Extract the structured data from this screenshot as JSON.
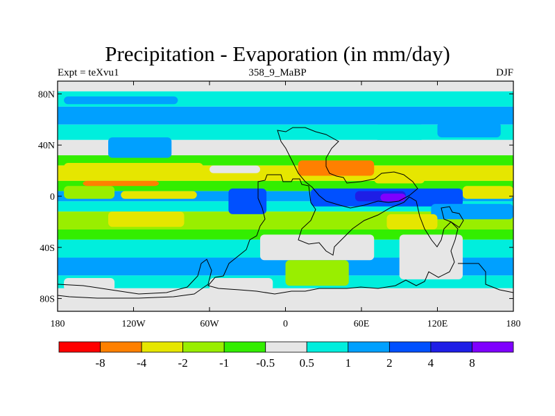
{
  "title": "Precipitation - Evaporation (in mm/day)",
  "subtitle_left": "Expt = teXvu1",
  "subtitle_center": "358_9_MaBP",
  "subtitle_right": "DJF",
  "axes": {
    "x_range": [
      -180,
      180
    ],
    "y_range": [
      -90,
      90
    ],
    "x_ticks": [
      {
        "value": -180,
        "label": "180"
      },
      {
        "value": -120,
        "label": "120W"
      },
      {
        "value": -60,
        "label": "60W"
      },
      {
        "value": 0,
        "label": "0"
      },
      {
        "value": 60,
        "label": "60E"
      },
      {
        "value": 120,
        "label": "120E"
      },
      {
        "value": 180,
        "label": "180"
      }
    ],
    "y_ticks": [
      {
        "value": 80,
        "label": "80N"
      },
      {
        "value": 40,
        "label": "40N"
      },
      {
        "value": 0,
        "label": "0"
      },
      {
        "value": -40,
        "label": "40S"
      },
      {
        "value": -80,
        "label": "80S"
      }
    ]
  },
  "colorbar": {
    "colors": [
      "#ff0000",
      "#ff8000",
      "#e6e600",
      "#99ee00",
      "#33ee00",
      "#e6e6e6",
      "#00eedd",
      "#00a0ff",
      "#0050ff",
      "#1e1ee6",
      "#7f00ff"
    ],
    "labels": [
      "-8",
      "-4",
      "-2",
      "-1",
      "-0.5",
      "0.5",
      "1",
      "2",
      "4",
      "8"
    ]
  },
  "map_bands": [
    {
      "lat_top": 90,
      "lat_bottom": 82,
      "color": "#e6e6e6"
    },
    {
      "lat_top": 82,
      "lat_bottom": 70,
      "color": "#00eedd"
    },
    {
      "lat_top": 70,
      "lat_bottom": 56,
      "color": "#00a0ff"
    },
    {
      "lat_top": 56,
      "lat_bottom": 44,
      "color": "#00eedd"
    },
    {
      "lat_top": 44,
      "lat_bottom": 32,
      "color": "#e6e6e6"
    },
    {
      "lat_top": 32,
      "lat_bottom": 24,
      "color": "#33ee00"
    },
    {
      "lat_top": 24,
      "lat_bottom": 12,
      "color": "#e6e600"
    },
    {
      "lat_top": 12,
      "lat_bottom": 4,
      "color": "#33ee00"
    },
    {
      "lat_top": 4,
      "lat_bottom": -4,
      "color": "#00a0ff"
    },
    {
      "lat_top": -4,
      "lat_bottom": -12,
      "color": "#00eedd"
    },
    {
      "lat_top": -12,
      "lat_bottom": -26,
      "color": "#99ee00"
    },
    {
      "lat_top": -26,
      "lat_bottom": -34,
      "color": "#33ee00"
    },
    {
      "lat_top": -34,
      "lat_bottom": -48,
      "color": "#00eedd"
    },
    {
      "lat_top": -48,
      "lat_bottom": -62,
      "color": "#00a0ff"
    },
    {
      "lat_top": -62,
      "lat_bottom": -72,
      "color": "#00eedd"
    },
    {
      "lat_top": -72,
      "lat_bottom": -90,
      "color": "#e6e6e6"
    }
  ],
  "map_patches": [
    {
      "lon": -175,
      "lat": 78,
      "w": 90,
      "h": 6,
      "color": "#00a0ff"
    },
    {
      "lon": -80,
      "lat": 80,
      "w": 60,
      "h": 4,
      "color": "#00eedd"
    },
    {
      "lon": -175,
      "lat": 26,
      "w": 110,
      "h": 10,
      "color": "#e6e600"
    },
    {
      "lon": -175,
      "lat": 8,
      "w": 40,
      "h": 10,
      "color": "#99ee00"
    },
    {
      "lon": -160,
      "lat": 12,
      "w": 60,
      "h": 4,
      "color": "#ff8000"
    },
    {
      "lon": -60,
      "lat": 24,
      "w": 40,
      "h": 6,
      "color": "#e6e6e6"
    },
    {
      "lon": 10,
      "lat": 28,
      "w": 60,
      "h": 12,
      "color": "#ff8000"
    },
    {
      "lon": 70,
      "lat": 20,
      "w": 40,
      "h": 10,
      "color": "#e6e600"
    },
    {
      "lon": -140,
      "lat": 46,
      "w": 50,
      "h": 16,
      "color": "#00a0ff"
    },
    {
      "lon": 70,
      "lat": 56,
      "w": 40,
      "h": 12,
      "color": "#00eedd"
    },
    {
      "lon": 120,
      "lat": 58,
      "w": 50,
      "h": 12,
      "color": "#00a0ff"
    },
    {
      "lon": -45,
      "lat": 6,
      "w": 30,
      "h": 20,
      "color": "#0050ff"
    },
    {
      "lon": 20,
      "lat": 6,
      "w": 120,
      "h": 14,
      "color": "#0050ff"
    },
    {
      "lon": 55,
      "lat": 4,
      "w": 40,
      "h": 8,
      "color": "#1e1ee6"
    },
    {
      "lon": 75,
      "lat": 2,
      "w": 20,
      "h": 6,
      "color": "#7f00ff"
    },
    {
      "lon": 115,
      "lat": -6,
      "w": 65,
      "h": 12,
      "color": "#00a0ff"
    },
    {
      "lon": -130,
      "lat": 4,
      "w": 60,
      "h": 6,
      "color": "#e6e600"
    },
    {
      "lon": 140,
      "lat": 8,
      "w": 40,
      "h": 10,
      "color": "#e6e600"
    },
    {
      "lon": -140,
      "lat": -12,
      "w": 60,
      "h": 12,
      "color": "#e6e600"
    },
    {
      "lon": 80,
      "lat": -14,
      "w": 40,
      "h": 12,
      "color": "#e6e600"
    },
    {
      "lon": -20,
      "lat": -30,
      "w": 90,
      "h": 20,
      "color": "#e6e6e6"
    },
    {
      "lon": 0,
      "lat": -50,
      "w": 50,
      "h": 20,
      "color": "#99ee00"
    },
    {
      "lon": -60,
      "lat": -64,
      "w": 50,
      "h": 10,
      "color": "#e6e6e6"
    },
    {
      "lon": 90,
      "lat": -30,
      "w": 50,
      "h": 35,
      "color": "#e6e6e6"
    },
    {
      "lon": -175,
      "lat": -64,
      "w": 40,
      "h": 10,
      "color": "#e6e6e6"
    }
  ]
}
